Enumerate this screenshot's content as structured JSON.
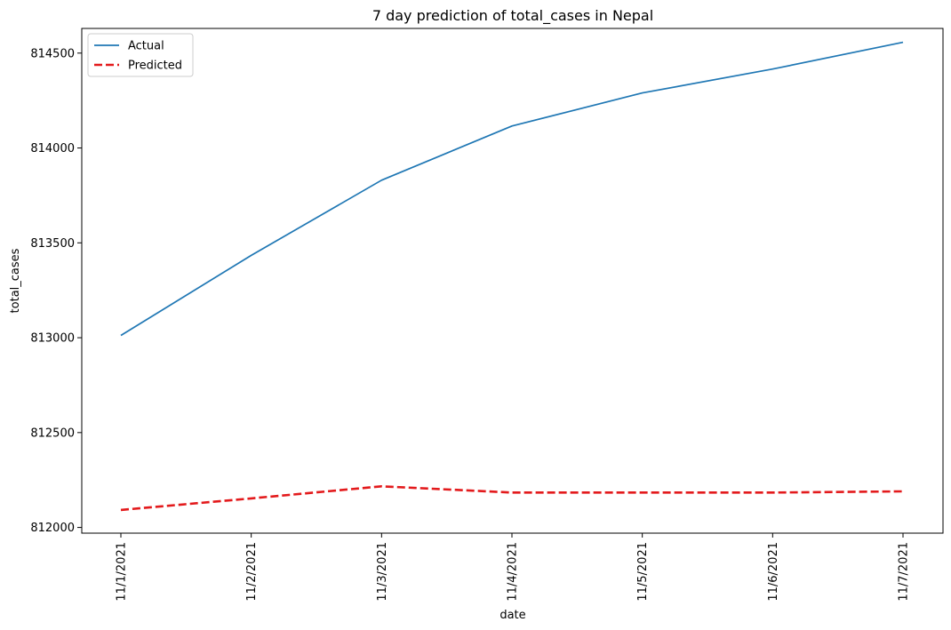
{
  "chart_data": {
    "type": "line",
    "title": "7 day prediction of total_cases in Nepal",
    "xlabel": "date",
    "ylabel": "total_cases",
    "categories": [
      "11/1/2021",
      "11/2/2021",
      "11/3/2021",
      "11/4/2021",
      "11/5/2021",
      "11/6/2021",
      "11/7/2021"
    ],
    "y_ticks": [
      812000,
      812500,
      813000,
      813500,
      814000,
      814500
    ],
    "ylim": [
      811970,
      814630
    ],
    "grid": false,
    "legend_position": "top-left",
    "series": [
      {
        "name": "Actual",
        "color": "#1f77b4",
        "style": "solid",
        "values": [
          813012,
          813434,
          813830,
          814116,
          814290,
          814416,
          814557
        ]
      },
      {
        "name": "Predicted",
        "color": "#e31a1c",
        "style": "dashed",
        "values": [
          812092,
          812153,
          812217,
          812184,
          812184,
          812184,
          812190
        ]
      }
    ]
  }
}
